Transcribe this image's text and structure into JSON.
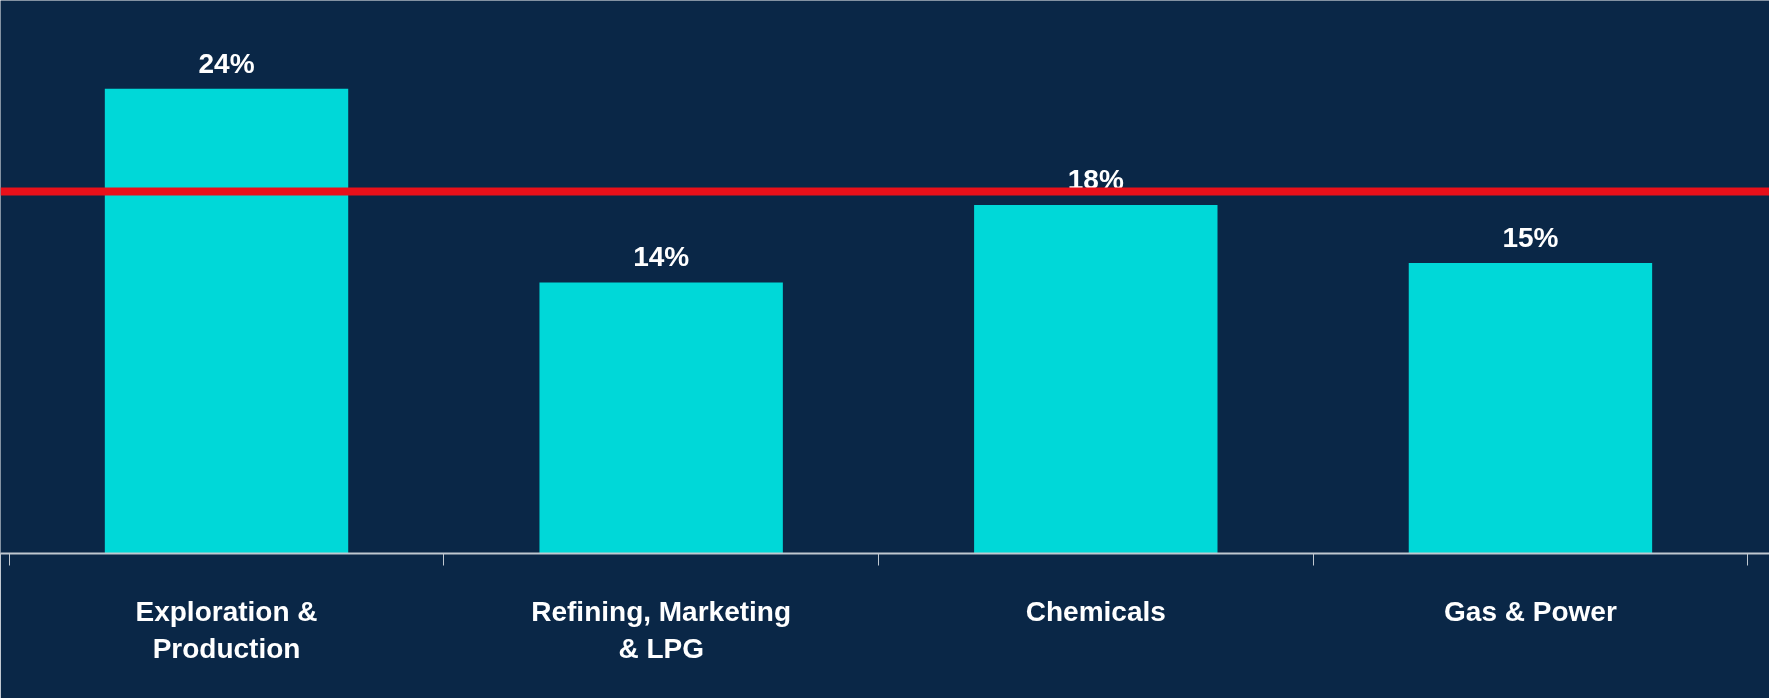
{
  "chart_data": {
    "type": "bar",
    "categories": [
      "Exploration & Production",
      "Refining, Marketing & LPG",
      "Chemicals",
      "Gas & Power"
    ],
    "values": [
      24,
      14,
      18,
      15
    ],
    "value_labels": [
      "24%",
      "14%",
      "18%",
      "15%"
    ],
    "color": "#00d8d8",
    "ref_lines": [
      {
        "axis": "y",
        "value": 18.7,
        "color": "#e8101a"
      }
    ]
  }
}
